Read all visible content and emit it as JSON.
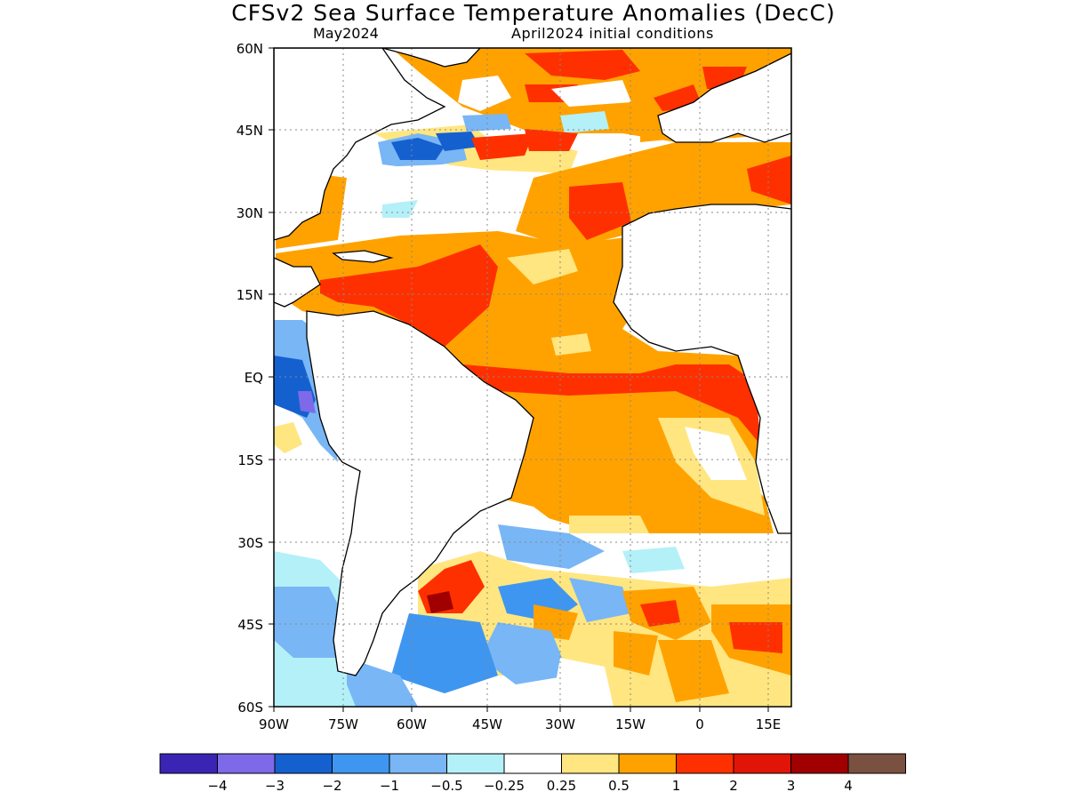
{
  "title": "CFSv2 Sea Surface Temperature Anomalies (DecC)",
  "valid_label": "May2024",
  "init_label": "April2024 initial conditions",
  "lat_ticks": [
    "60N",
    "45N",
    "30N",
    "15N",
    "EQ",
    "15S",
    "30S",
    "45S",
    "60S"
  ],
  "lon_ticks": [
    "90W",
    "75W",
    "60W",
    "45W",
    "30W",
    "15W",
    "0",
    "15E"
  ],
  "legend": {
    "colors": [
      "#3a24b4",
      "#7e6ae8",
      "#1560cf",
      "#3f96f0",
      "#78b6f5",
      "#b4f0f8",
      "#ffffff",
      "#ffe680",
      "#ffa200",
      "#ff3000",
      "#e01508",
      "#a00000",
      "#7a5040"
    ],
    "labels": [
      "−4",
      "−3",
      "−2",
      "−1",
      "−0.5",
      "−0.25",
      "0.25",
      "0.5",
      "1",
      "2",
      "3",
      "4"
    ]
  }
}
